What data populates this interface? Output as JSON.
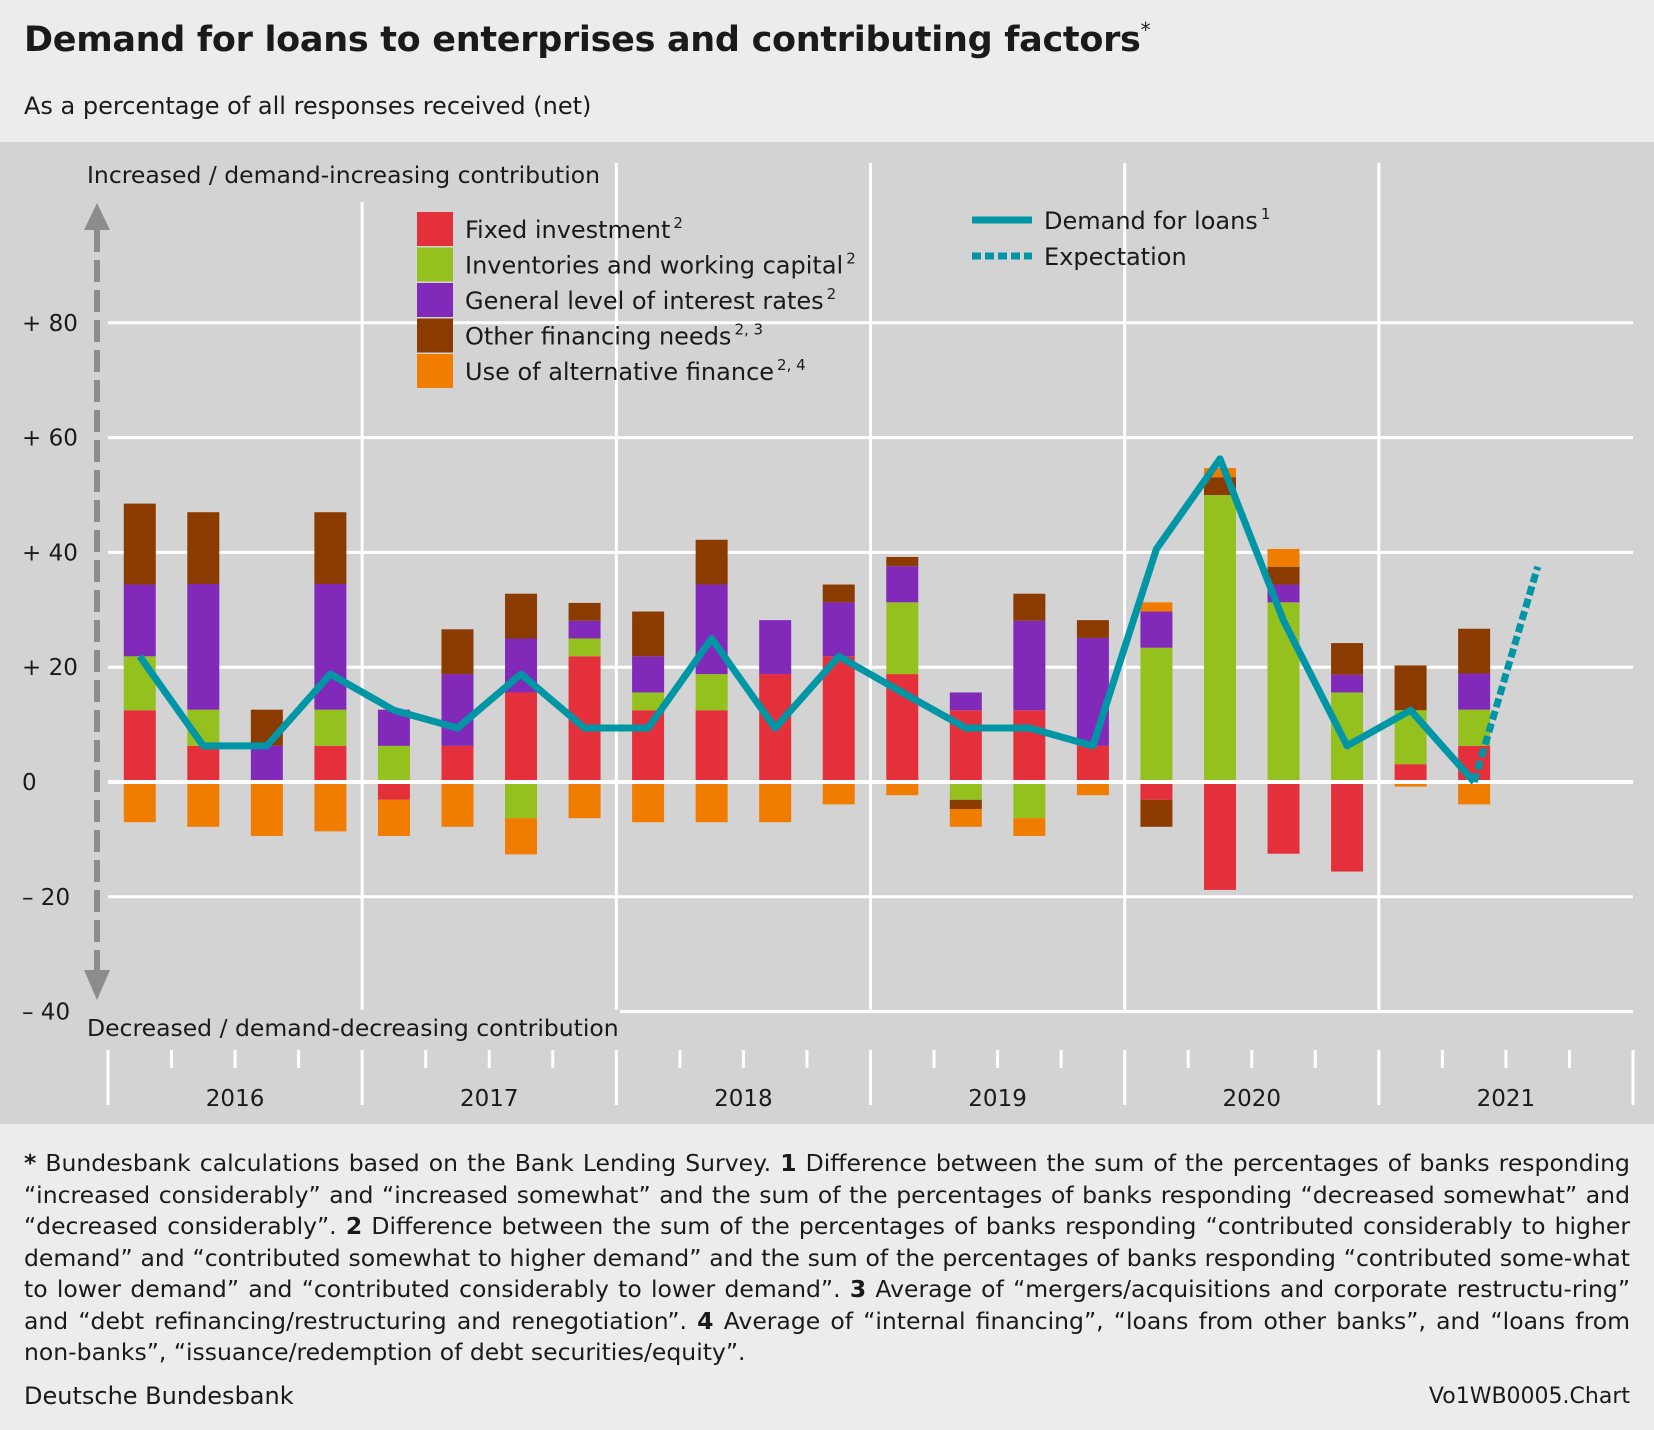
{
  "header": {
    "title": "Demand for loans to enterprises and contributing factors",
    "title_mark": "*",
    "subtitle": "As a percentage of all responses received (net)"
  },
  "annotations": {
    "top": "Increased / demand-increasing contribution",
    "bottom": "Decreased / demand-decreasing contribution"
  },
  "footnote": {
    "s0": "*",
    "t0": " Bundesbank calculations based on the Bank Lending Survey. ",
    "s1": "1",
    "t1": " Difference between the sum of the percentages of banks responding “increased considerably” and “increased somewhat” and the sum of the percentages of banks responding “decreased somewhat” and “decreased considerably”. ",
    "s2": "2",
    "t2": " Difference between the sum of the percentages of banks responding “contributed considerably to higher demand” and “contributed somewhat to higher demand” and the sum of the percentages of banks responding “contributed some-what to lower demand” and “contributed considerably to lower demand”. ",
    "s3": "3",
    "t3": " Average of “mergers/acquisitions and corporate restructu-ring” and “debt refinancing/restructuring and renegotiation”. ",
    "s4": "4",
    "t4": " Average of “internal financing”, “loans from other banks”, and “loans from non-banks”, “issuance/redemption of debt securities/equity”."
  },
  "source": "Deutsche Bundesbank",
  "chart_code": "Vo1WB0005.Chart",
  "colors": {
    "background": "#d3d3d3",
    "page": "#ececec",
    "grid": "#ffffff",
    "line": "#0096a6",
    "arrow": "#8c8c8c"
  },
  "chart_data": {
    "type": "bar",
    "stacked": true,
    "ylim": [
      -40,
      90
    ],
    "yticks": [
      {
        "value": 80,
        "label": "+ 80"
      },
      {
        "value": 60,
        "label": "+ 60"
      },
      {
        "value": 40,
        "label": "+ 40"
      },
      {
        "value": 20,
        "label": "+ 20"
      },
      {
        "value": 0,
        "label": "0"
      },
      {
        "value": -20,
        "label": "– 20"
      },
      {
        "value": -40,
        "label": "– 40"
      }
    ],
    "grid": true,
    "years": [
      "2016",
      "2017",
      "2018",
      "2019",
      "2020",
      "2021"
    ],
    "categories": [
      "2016 Q1",
      "2016 Q2",
      "2016 Q3",
      "2016 Q4",
      "2017 Q1",
      "2017 Q2",
      "2017 Q3",
      "2017 Q4",
      "2018 Q1",
      "2018 Q2",
      "2018 Q3",
      "2018 Q4",
      "2019 Q1",
      "2019 Q2",
      "2019 Q3",
      "2019 Q4",
      "2020 Q1",
      "2020 Q2",
      "2020 Q3",
      "2020 Q4",
      "2021 Q1",
      "2021 Q2",
      "2021 Q3",
      "2021 Q4"
    ],
    "series": [
      {
        "name": "Fixed investment",
        "mark": "2",
        "color": "#e4303a",
        "values": [
          12.5,
          6.3,
          0,
          6.3,
          -3.1,
          6.3,
          15.6,
          21.9,
          12.5,
          12.5,
          18.8,
          21.9,
          18.8,
          12.5,
          12.5,
          6.3,
          -3.1,
          -18.8,
          -12.5,
          -15.6,
          3.1,
          6.3,
          null,
          null
        ]
      },
      {
        "name": "Inventories and working capital",
        "mark": "2",
        "color": "#95c11f",
        "values": [
          9.4,
          6.3,
          0,
          6.3,
          6.3,
          0,
          -6.3,
          3.1,
          3.1,
          6.3,
          0,
          0,
          12.5,
          -3.1,
          -6.3,
          0,
          23.4,
          50.0,
          31.3,
          15.6,
          9.4,
          6.3,
          null,
          null
        ]
      },
      {
        "name": "General level of interest rates",
        "mark": "2",
        "color": "#8129b8",
        "values": [
          12.5,
          21.9,
          6.3,
          21.9,
          6.3,
          12.5,
          9.4,
          3.1,
          6.3,
          15.6,
          9.4,
          9.4,
          6.3,
          3.1,
          15.6,
          18.8,
          6.3,
          0,
          3.1,
          3.1,
          0,
          6.3,
          null,
          null
        ]
      },
      {
        "name": "Other financing needs",
        "mark": "2, 3",
        "color": "#8b3a00",
        "values": [
          14.1,
          12.5,
          6.3,
          12.5,
          0,
          7.8,
          7.8,
          3.1,
          7.8,
          7.8,
          0,
          3.1,
          1.6,
          -1.6,
          4.7,
          3.1,
          -4.7,
          3.1,
          3.1,
          5.5,
          7.8,
          7.8,
          null,
          null
        ]
      },
      {
        "name": "Use of alternative finance",
        "mark": "2, 4",
        "color": "#f07d00",
        "values": [
          -7.0,
          -7.8,
          -9.4,
          -8.6,
          -6.3,
          -7.8,
          -6.3,
          -6.3,
          -7.0,
          -7.0,
          -7.0,
          -3.9,
          -2.3,
          -3.1,
          -3.1,
          -2.3,
          1.6,
          1.6,
          3.1,
          0,
          -0.8,
          -3.9,
          null,
          null
        ]
      },
      {
        "name": "Demand for loans",
        "mark": "1",
        "type": "line",
        "color": "#0096a6",
        "values": [
          21.9,
          6.3,
          6.3,
          18.8,
          12.5,
          9.4,
          18.8,
          9.4,
          9.4,
          25.0,
          9.4,
          21.9,
          15.6,
          9.4,
          9.4,
          6.3,
          40.6,
          56.3,
          28.1,
          6.3,
          12.5,
          0,
          null,
          null
        ]
      },
      {
        "name": "Expectation",
        "type": "line",
        "style": "dashed",
        "color": "#0096a6",
        "values": [
          null,
          null,
          null,
          null,
          null,
          null,
          null,
          null,
          null,
          null,
          null,
          null,
          null,
          null,
          null,
          null,
          null,
          null,
          null,
          null,
          null,
          0,
          37.5,
          null
        ]
      }
    ],
    "legend_placement": "top",
    "arrows": "vertical double arrow on left: up = increased, down = decreased"
  }
}
